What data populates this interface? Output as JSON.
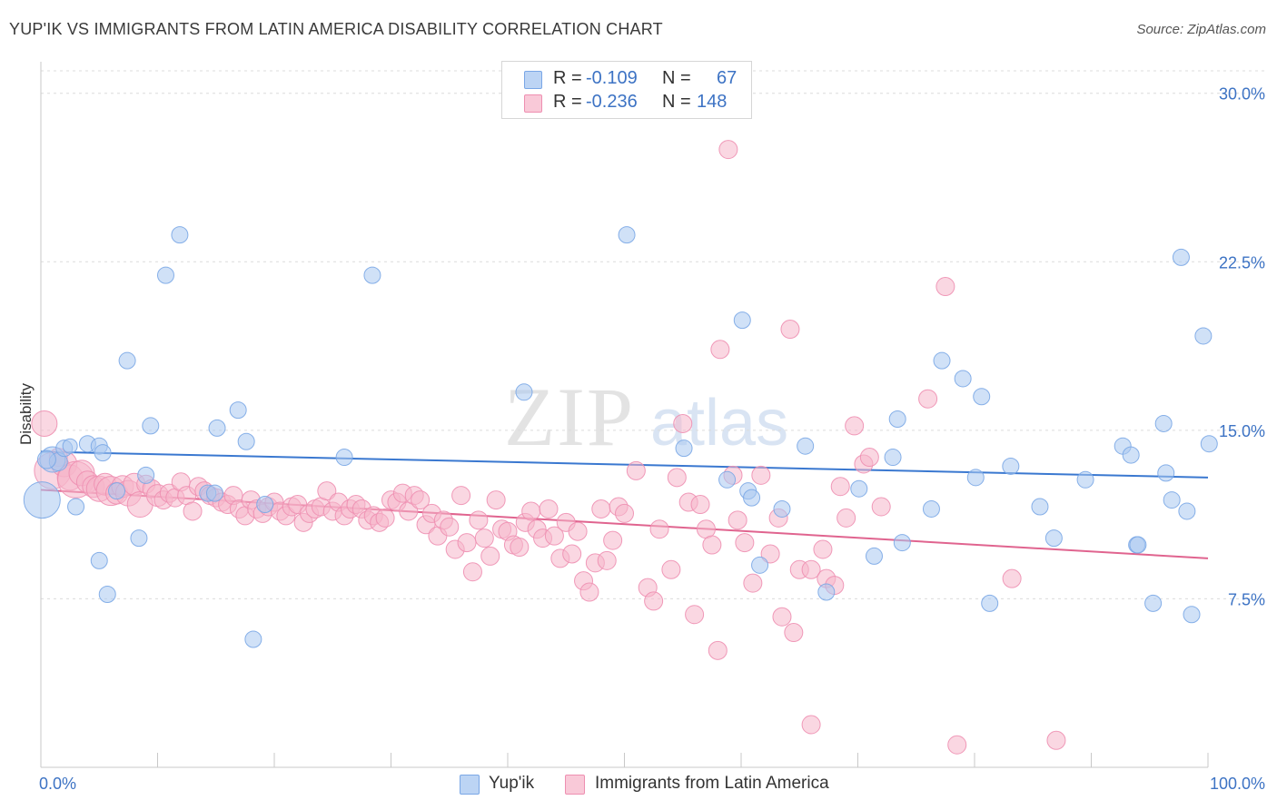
{
  "title": "YUP'IK VS IMMIGRANTS FROM LATIN AMERICA DISABILITY CORRELATION CHART",
  "source": "Source: ZipAtlas.com",
  "watermark": {
    "zip": "ZIP",
    "atlas": "atlas"
  },
  "legend_top": [
    {
      "r_label": "R =",
      "r_value": "-0.109",
      "n_label": "N =",
      "n_value": "67",
      "color": "#a9c8f0"
    },
    {
      "r_label": "R =",
      "r_value": "-0.236",
      "n_label": "N =",
      "n_value": "148",
      "color": "#f6b6cb"
    }
  ],
  "legend_bottom": [
    {
      "label": "Yup'ik",
      "color": "#a9c8f0"
    },
    {
      "label": "Immigrants from Latin America",
      "color": "#f6b6cb"
    }
  ],
  "chart_data": {
    "type": "scatter",
    "title": "YUP'IK VS IMMIGRANTS FROM LATIN AMERICA DISABILITY CORRELATION CHART",
    "xlabel": "",
    "ylabel": "Disability",
    "xlim": [
      0,
      100
    ],
    "ylim": [
      0,
      31
    ],
    "x_tick_labels": [
      "0.0%",
      "100.0%"
    ],
    "y_ticks": [
      7.5,
      15.0,
      22.5,
      30.0
    ],
    "y_tick_labels": [
      "7.5%",
      "15.0%",
      "22.5%",
      "30.0%"
    ],
    "grid": "horizontal dashed",
    "legend_position": "top-center",
    "series": [
      {
        "name": "Yup'ik",
        "color": "#7aa7e6",
        "fill": "#a9c8f0",
        "line_color": "#3a78d0",
        "trend": [
          [
            0,
            14.05
          ],
          [
            100,
            12.9
          ]
        ],
        "points": [
          [
            0.1,
            11.9,
            20
          ],
          [
            1,
            13.7,
            14
          ],
          [
            1.5,
            13.6,
            10
          ],
          [
            2,
            14.2,
            9
          ],
          [
            2.5,
            14.3,
            8
          ],
          [
            3,
            11.6,
            9
          ],
          [
            4,
            14.4,
            9
          ],
          [
            5,
            14.3,
            9
          ],
          [
            5.3,
            14.0,
            9
          ],
          [
            5,
            9.2,
            9
          ],
          [
            5.7,
            7.7,
            9
          ],
          [
            6.5,
            12.3,
            9
          ],
          [
            7.4,
            18.1,
            9
          ],
          [
            8.4,
            10.2,
            9
          ],
          [
            9,
            13.0,
            9
          ],
          [
            9.4,
            15.2,
            9
          ],
          [
            10.7,
            21.9,
            9
          ],
          [
            11.9,
            23.7,
            9
          ],
          [
            14.3,
            12.2,
            9
          ],
          [
            14.9,
            12.2,
            9
          ],
          [
            15.1,
            15.1,
            9
          ],
          [
            16.9,
            15.9,
            9
          ],
          [
            17.6,
            14.5,
            9
          ],
          [
            18.2,
            5.7,
            9
          ],
          [
            19.2,
            11.7,
            9
          ],
          [
            26,
            13.8,
            9
          ],
          [
            28.4,
            21.9,
            9
          ],
          [
            41.4,
            16.7,
            9
          ],
          [
            50.2,
            23.7,
            9
          ],
          [
            55.1,
            14.2,
            9
          ],
          [
            58.8,
            12.8,
            9
          ],
          [
            60.1,
            19.9,
            9
          ],
          [
            60.6,
            12.3,
            9
          ],
          [
            60.9,
            12.0,
            9
          ],
          [
            61.6,
            9.0,
            9
          ],
          [
            63.5,
            11.5,
            9
          ],
          [
            65.5,
            14.3,
            9
          ],
          [
            67.3,
            7.8,
            9
          ],
          [
            70.1,
            12.4,
            9
          ],
          [
            71.4,
            9.4,
            9
          ],
          [
            73,
            13.8,
            9
          ],
          [
            73.4,
            15.5,
            9
          ],
          [
            73.8,
            10.0,
            9
          ],
          [
            76.3,
            11.5,
            9
          ],
          [
            77.2,
            18.1,
            9
          ],
          [
            79,
            17.3,
            9
          ],
          [
            80.1,
            12.9,
            9
          ],
          [
            80.6,
            16.5,
            9
          ],
          [
            81.3,
            7.3,
            9
          ],
          [
            83.1,
            13.4,
            9
          ],
          [
            85.6,
            11.6,
            9
          ],
          [
            86.8,
            10.2,
            9
          ],
          [
            89.5,
            12.8,
            9
          ],
          [
            92.7,
            14.3,
            9
          ],
          [
            93.4,
            13.9,
            9
          ],
          [
            93.9,
            9.9,
            9
          ],
          [
            94,
            9.9,
            9
          ],
          [
            95.3,
            7.3,
            9
          ],
          [
            96.2,
            15.3,
            9
          ],
          [
            96.4,
            13.1,
            9
          ],
          [
            96.9,
            11.9,
            9
          ],
          [
            97.7,
            22.7,
            9
          ],
          [
            98.2,
            11.4,
            9
          ],
          [
            98.6,
            6.8,
            9
          ],
          [
            99.6,
            19.2,
            9
          ],
          [
            100.1,
            14.4,
            9
          ],
          [
            0.5,
            13.7,
            10
          ]
        ]
      },
      {
        "name": "Immigrants from Latin America",
        "color": "#ee8fb1",
        "fill": "#f6b6cb",
        "line_color": "#e0648f",
        "trend": [
          [
            0,
            12.35
          ],
          [
            100,
            9.3
          ]
        ],
        "points": [
          [
            0.3,
            15.3,
            14
          ],
          [
            1,
            13.2,
            20
          ],
          [
            1.5,
            13.8,
            10
          ],
          [
            2,
            13.5,
            14
          ],
          [
            2.5,
            12.9,
            14
          ],
          [
            3,
            12.8,
            20
          ],
          [
            3.5,
            13.1,
            14
          ],
          [
            4,
            12.7,
            12
          ],
          [
            4.5,
            12.5,
            12
          ],
          [
            5,
            12.4,
            14
          ],
          [
            5.5,
            12.6,
            12
          ],
          [
            6,
            12.3,
            16
          ],
          [
            6.5,
            12.2,
            12
          ],
          [
            7,
            12.5,
            12
          ],
          [
            7.5,
            12.2,
            14
          ],
          [
            8,
            12.6,
            12
          ],
          [
            8.5,
            11.7,
            14
          ],
          [
            9,
            12.6,
            10
          ],
          [
            9.5,
            12.4,
            10
          ],
          [
            10,
            12.1,
            12
          ],
          [
            10.5,
            11.9,
            10
          ],
          [
            11,
            12.2,
            10
          ],
          [
            11.5,
            12.0,
            10
          ],
          [
            12,
            12.7,
            10
          ],
          [
            12.5,
            12.1,
            10
          ],
          [
            13,
            11.4,
            10
          ],
          [
            13.5,
            12.5,
            10
          ],
          [
            14,
            12.3,
            10
          ],
          [
            14.5,
            12.1,
            10
          ],
          [
            15,
            12.0,
            10
          ],
          [
            15.5,
            11.8,
            10
          ],
          [
            16,
            11.7,
            10
          ],
          [
            16.5,
            12.1,
            10
          ],
          [
            17,
            11.5,
            10
          ],
          [
            17.5,
            11.2,
            10
          ],
          [
            18,
            11.9,
            10
          ],
          [
            18.5,
            11.5,
            10
          ],
          [
            19,
            11.3,
            10
          ],
          [
            19.5,
            11.6,
            10
          ],
          [
            20,
            11.8,
            10
          ],
          [
            20.5,
            11.4,
            10
          ],
          [
            21,
            11.2,
            10
          ],
          [
            21.5,
            11.6,
            10
          ],
          [
            22,
            11.7,
            10
          ],
          [
            22.5,
            10.9,
            10
          ],
          [
            23,
            11.3,
            10
          ],
          [
            23.5,
            11.5,
            10
          ],
          [
            24,
            11.6,
            10
          ],
          [
            24.5,
            12.3,
            10
          ],
          [
            25,
            11.4,
            10
          ],
          [
            25.5,
            11.8,
            10
          ],
          [
            26,
            11.2,
            10
          ],
          [
            26.5,
            11.5,
            10
          ],
          [
            27,
            11.7,
            10
          ],
          [
            27.5,
            11.5,
            10
          ],
          [
            28,
            11.0,
            10
          ],
          [
            28.5,
            11.2,
            10
          ],
          [
            29,
            10.9,
            10
          ],
          [
            29.5,
            11.1,
            10
          ],
          [
            30,
            11.9,
            10
          ],
          [
            30.5,
            11.8,
            10
          ],
          [
            31,
            12.2,
            10
          ],
          [
            31.5,
            11.4,
            10
          ],
          [
            32,
            12.1,
            10
          ],
          [
            32.5,
            11.9,
            10
          ],
          [
            33,
            10.8,
            10
          ],
          [
            33.5,
            11.3,
            10
          ],
          [
            34,
            10.3,
            10
          ],
          [
            34.5,
            11.0,
            10
          ],
          [
            35,
            10.7,
            10
          ],
          [
            35.5,
            9.7,
            10
          ],
          [
            36,
            12.1,
            10
          ],
          [
            36.5,
            10.0,
            10
          ],
          [
            37,
            8.7,
            10
          ],
          [
            37.5,
            11.0,
            10
          ],
          [
            38,
            10.2,
            10
          ],
          [
            38.5,
            9.4,
            10
          ],
          [
            39,
            11.9,
            10
          ],
          [
            39.5,
            10.6,
            10
          ],
          [
            40,
            10.5,
            10
          ],
          [
            40.5,
            9.9,
            10
          ],
          [
            41,
            9.8,
            10
          ],
          [
            41.5,
            10.9,
            10
          ],
          [
            42,
            11.4,
            10
          ],
          [
            42.5,
            10.6,
            10
          ],
          [
            43,
            10.2,
            10
          ],
          [
            43.5,
            11.5,
            10
          ],
          [
            44,
            10.3,
            10
          ],
          [
            44.5,
            9.3,
            10
          ],
          [
            45,
            10.9,
            10
          ],
          [
            45.5,
            9.5,
            10
          ],
          [
            46,
            10.5,
            10
          ],
          [
            46.5,
            8.3,
            10
          ],
          [
            47,
            7.8,
            10
          ],
          [
            47.5,
            9.1,
            10
          ],
          [
            48,
            11.5,
            10
          ],
          [
            48.5,
            9.2,
            10
          ],
          [
            49,
            10.1,
            10
          ],
          [
            49.5,
            11.6,
            10
          ],
          [
            50,
            11.3,
            10
          ],
          [
            51,
            13.2,
            10
          ],
          [
            52,
            8.0,
            10
          ],
          [
            52.5,
            7.4,
            10
          ],
          [
            53,
            10.6,
            10
          ],
          [
            54,
            8.8,
            10
          ],
          [
            54.5,
            12.9,
            10
          ],
          [
            55,
            15.3,
            10
          ],
          [
            55.5,
            11.8,
            10
          ],
          [
            56,
            6.8,
            10
          ],
          [
            56.5,
            11.7,
            10
          ],
          [
            57,
            10.6,
            10
          ],
          [
            57.5,
            9.9,
            10
          ],
          [
            58,
            5.2,
            10
          ],
          [
            58.2,
            18.6,
            10
          ],
          [
            58.9,
            27.5,
            10
          ],
          [
            59.3,
            13.0,
            10
          ],
          [
            59.7,
            11.0,
            10
          ],
          [
            60.3,
            10.0,
            10
          ],
          [
            61,
            8.2,
            10
          ],
          [
            61.7,
            13.0,
            10
          ],
          [
            62.5,
            9.5,
            10
          ],
          [
            63.5,
            6.7,
            10
          ],
          [
            64.2,
            19.5,
            10
          ],
          [
            64.5,
            6.0,
            10
          ],
          [
            65,
            8.8,
            10
          ],
          [
            66,
            8.8,
            10
          ],
          [
            67,
            9.7,
            10
          ],
          [
            67.3,
            8.4,
            10
          ],
          [
            68,
            8.1,
            10
          ],
          [
            68.5,
            12.5,
            10
          ],
          [
            69,
            11.1,
            10
          ],
          [
            69.7,
            15.2,
            10
          ],
          [
            70.5,
            13.5,
            10
          ],
          [
            71,
            13.8,
            10
          ],
          [
            72,
            11.6,
            10
          ],
          [
            76,
            16.4,
            10
          ],
          [
            77.5,
            21.4,
            10
          ],
          [
            83.2,
            8.4,
            10
          ],
          [
            87,
            1.2,
            10
          ],
          [
            66,
            1.9,
            10
          ],
          [
            78.5,
            1.0,
            10
          ],
          [
            63.2,
            11.1,
            10
          ]
        ]
      }
    ]
  }
}
